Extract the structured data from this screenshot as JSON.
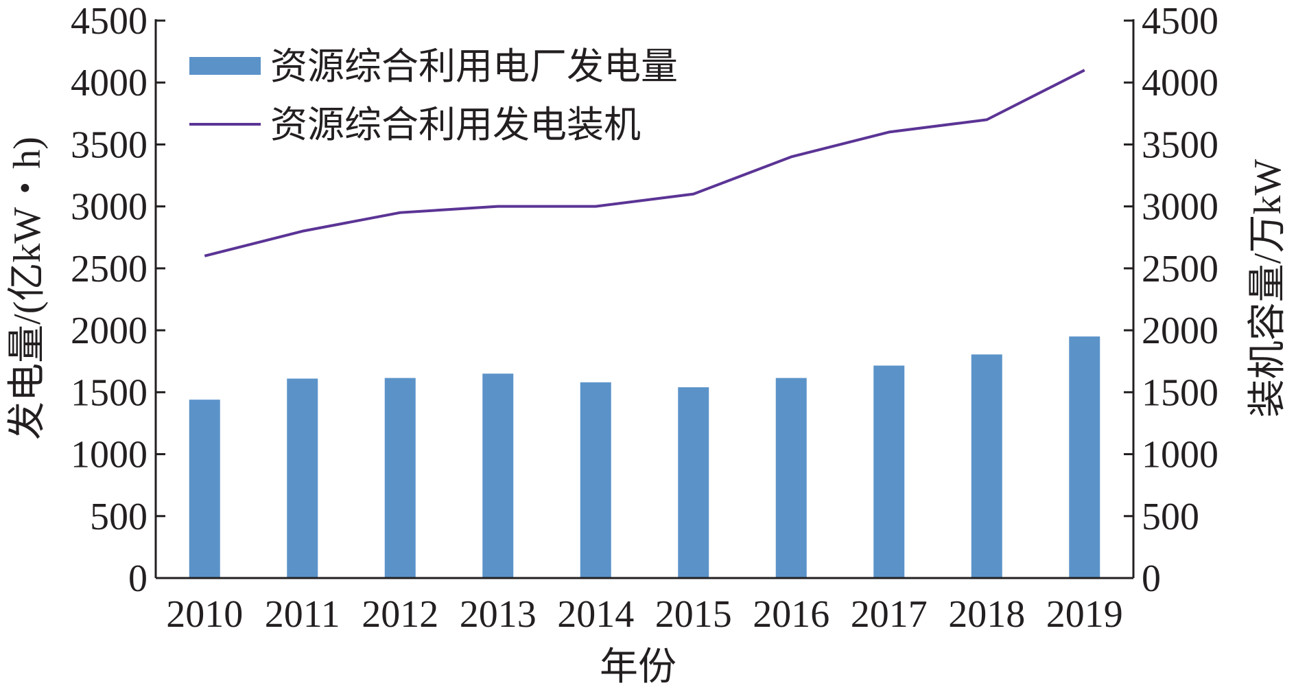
{
  "chart_data": {
    "type": "bar",
    "categories": [
      "2010",
      "2011",
      "2012",
      "2013",
      "2014",
      "2015",
      "2016",
      "2017",
      "2018",
      "2019"
    ],
    "series": [
      {
        "name": "资源综合利用电厂发电量",
        "kind": "bar",
        "axis": "left",
        "color": "#5b93c9",
        "values": [
          1440,
          1610,
          1615,
          1650,
          1580,
          1540,
          1615,
          1715,
          1805,
          1950
        ]
      },
      {
        "name": "资源综合利用发电装机",
        "kind": "line",
        "axis": "right",
        "color": "#5b3495",
        "values": [
          2600,
          2800,
          2950,
          3000,
          3000,
          3100,
          3400,
          3600,
          3700,
          4100
        ]
      }
    ],
    "xlabel": "年份",
    "ylabel_left": "发电量/(亿kW・h)",
    "ylabel_right": "装机容量/万kW",
    "ylim": [
      0,
      4500
    ],
    "yticks": [
      "0",
      "500",
      "1000",
      "1500",
      "2000",
      "2500",
      "3000",
      "3500",
      "4000",
      "4500"
    ],
    "grid": false,
    "legend_position": "top-left"
  }
}
